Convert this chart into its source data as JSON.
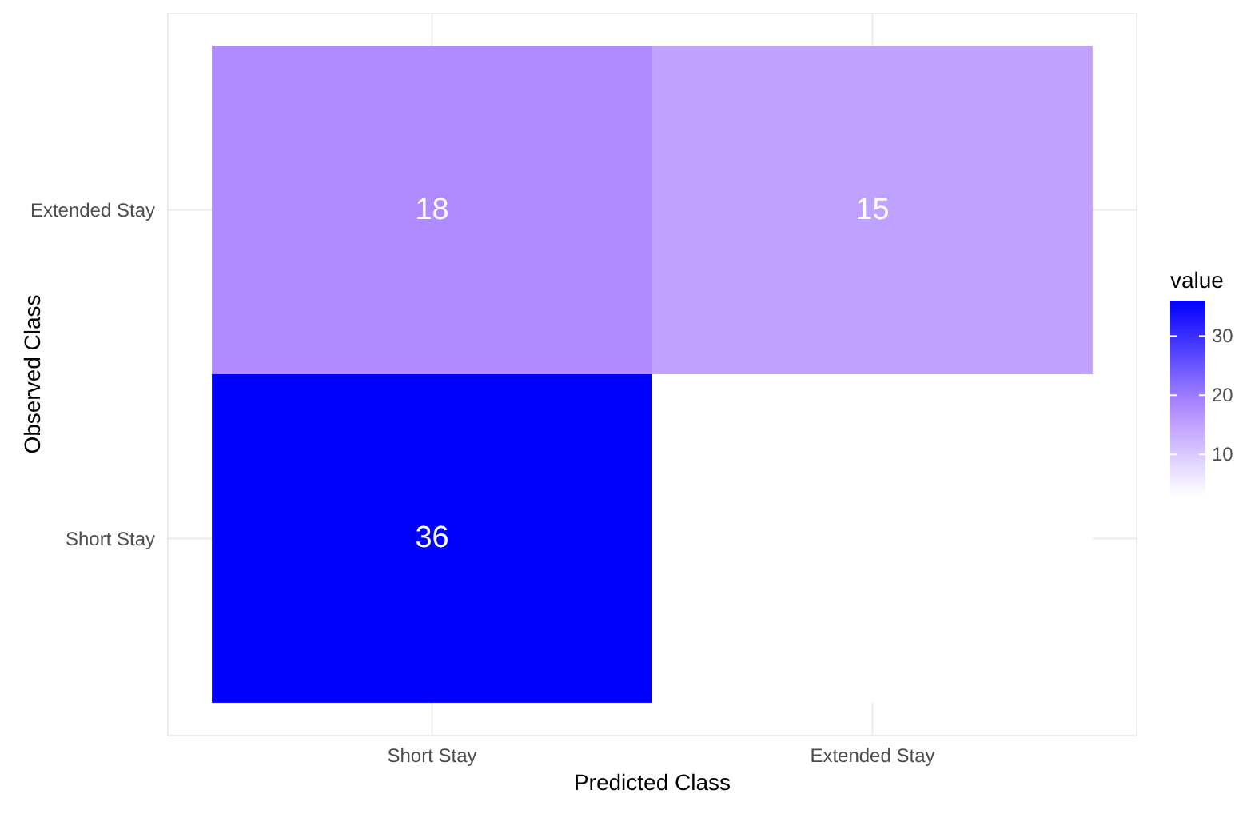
{
  "chart_data": {
    "type": "heatmap",
    "xlabel": "Predicted Class",
    "ylabel": "Observed Class",
    "clabel": "value",
    "categories": [
      "Short Stay",
      "Extended Stay"
    ],
    "y_categories": [
      "Extended Stay",
      "Short Stay"
    ],
    "cells": [
      [
        18,
        15
      ],
      [
        36,
        3
      ]
    ],
    "cell_labels": [
      [
        "18",
        "15"
      ],
      [
        "36",
        null
      ]
    ],
    "clim": [
      3,
      36
    ],
    "cticks": [
      10,
      20,
      30
    ],
    "grid": true
  }
}
